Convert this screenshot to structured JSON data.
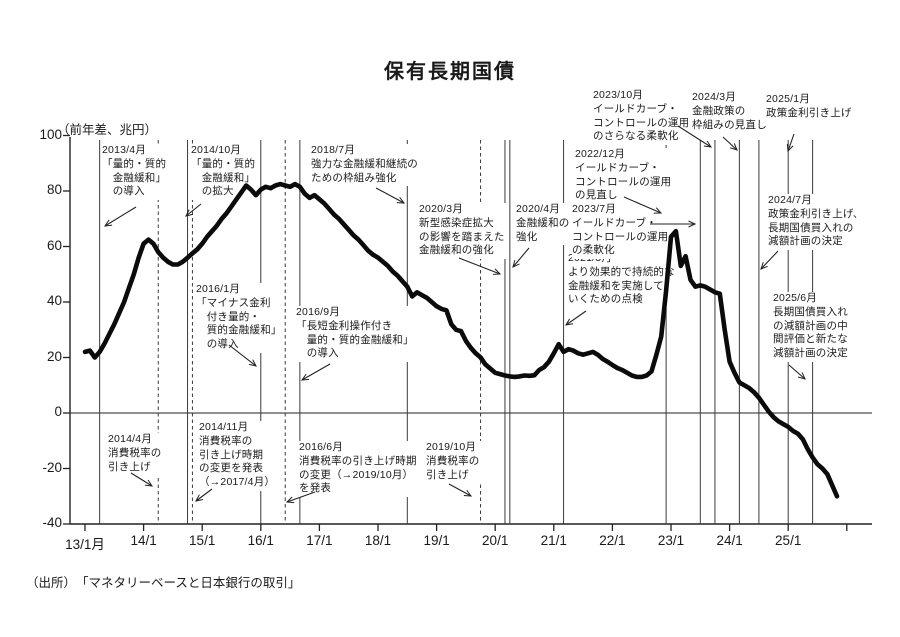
{
  "title": "保有長期国債",
  "y_axis_unit_label": "（前年差、兆円）",
  "source": "（出所）　「マネタリーベースと日本銀行の取引」",
  "chart_data": {
    "type": "line",
    "series_name": "保有長期国債（前年差、兆円）",
    "start_year": 2013,
    "start_month": 1,
    "frequency": "monthly",
    "ylim": [
      -40,
      100
    ],
    "y_ticks": [
      100,
      80,
      60,
      40,
      20,
      0,
      -20,
      -40
    ],
    "x_tick_labels": [
      "13/1月",
      "14/1",
      "15/1",
      "16/1",
      "17/1",
      "18/1",
      "19/1",
      "20/1",
      "21/1",
      "22/1",
      "23/1",
      "24/1",
      "25/1"
    ],
    "grid": false,
    "zero_line": true,
    "line_color": "#0b0b0b",
    "values": [
      22,
      22.5,
      20,
      22,
      25,
      28.5,
      32,
      36,
      40,
      45,
      50,
      56,
      61,
      62.5,
      61,
      58,
      56,
      54.5,
      53.5,
      53.5,
      54.5,
      56,
      57.5,
      59,
      61,
      63.5,
      65.5,
      67.5,
      70,
      72,
      74.5,
      77,
      79.5,
      82,
      80.5,
      78.5,
      80.5,
      81.5,
      81,
      82,
      82.5,
      82,
      81.5,
      82.5,
      81.5,
      79,
      77.5,
      78.5,
      77,
      75.5,
      73.5,
      71.5,
      70,
      68,
      66,
      64,
      62.5,
      60.5,
      58.5,
      57,
      56,
      54.5,
      53,
      51,
      49.5,
      47.5,
      45.5,
      42,
      43.5,
      42.5,
      41.5,
      40,
      38.5,
      37.5,
      37,
      32,
      30,
      29.5,
      26,
      23.5,
      21.5,
      20,
      17.5,
      16,
      14.5,
      14,
      13.5,
      13.2,
      13,
      13.2,
      13.5,
      13.4,
      13.6,
      15.5,
      16.5,
      18.5,
      21.5,
      24.8,
      22,
      23,
      22.5,
      21.5,
      21,
      21.5,
      22,
      21,
      19.5,
      18.5,
      17.3,
      16.2,
      15.5,
      14.5,
      13.5,
      13,
      13,
      13.5,
      15,
      21,
      27.5,
      44,
      63.5,
      65.5,
      53,
      56.5,
      48,
      45.5,
      46,
      45.5,
      44.5,
      43.5,
      43,
      30,
      18.5,
      14.5,
      11,
      10,
      9,
      7.5,
      5.5,
      3,
      0.5,
      -1.5,
      -3,
      -4,
      -5,
      -6.5,
      -7.5,
      -9.5,
      -13,
      -16,
      -18.5,
      -20,
      -22,
      -26,
      -30
    ],
    "annotations": [
      {
        "id": "2013-04",
        "year": 2013,
        "month": 4,
        "line_style": "solid",
        "lines": [
          "2013/4月",
          "「量的・質的",
          "　金融緩和」",
          "　の導入"
        ],
        "text": [
          102,
          144
        ],
        "arrow": [
          136,
          207,
          105,
          226
        ]
      },
      {
        "id": "2014-04",
        "year": 2014,
        "month": 4,
        "line_style": "dashed",
        "lines": [
          "2014/4月",
          "消費税率の",
          "引き上げ"
        ],
        "text": [
          108,
          433
        ],
        "arrow": [
          131,
          473,
          152,
          486
        ]
      },
      {
        "id": "2014-10",
        "year": 2014,
        "month": 10,
        "line_style": "solid",
        "lines": [
          "2014/10月",
          "「量的・質的",
          "　金融緩和」",
          "　の拡大"
        ],
        "text": [
          191,
          144
        ],
        "arrow": [
          201,
          204,
          186,
          216
        ]
      },
      {
        "id": "2014-11",
        "year": 2014,
        "month": 11,
        "line_style": "dashed",
        "lines": [
          "2014/11月",
          "消費税率の",
          "引き上げ時期",
          "の変更を発表",
          "（→2017/4月）"
        ],
        "text": [
          199,
          421
        ],
        "arrow": [
          212,
          489,
          196,
          501
        ]
      },
      {
        "id": "2016-01",
        "year": 2016,
        "month": 1,
        "line_style": "solid",
        "lines": [
          "2016/1月",
          "「マイナス金利",
          "　付き量的・",
          "　質的金融緩和」",
          "　の導入"
        ],
        "text": [
          196,
          283
        ],
        "arrow": [
          229,
          345,
          256,
          366
        ]
      },
      {
        "id": "2016-06",
        "year": 2016,
        "month": 6,
        "line_style": "dashed",
        "lines": [
          "2016/6月",
          "消費税率の引き上げ時期",
          "の変更（→2019/10月）",
          "を発表"
        ],
        "text": [
          299,
          441
        ],
        "arrow": [
          315,
          492,
          287,
          502
        ]
      },
      {
        "id": "2016-09",
        "year": 2016,
        "month": 9,
        "line_style": "solid",
        "lines": [
          "2016/9月",
          "「長短金利操作付き",
          "　量的・質的金融緩和」",
          "　の導入"
        ],
        "text": [
          296,
          306
        ],
        "arrow": [
          330,
          364,
          302,
          380
        ]
      },
      {
        "id": "2018-07",
        "year": 2018,
        "month": 7,
        "line_style": "solid",
        "lines": [
          "2018/7月",
          "強力な金融緩和継続の",
          "ための枠組み強化"
        ],
        "text": [
          311,
          144
        ],
        "arrow": [
          376,
          188,
          404,
          203
        ]
      },
      {
        "id": "2019-10",
        "year": 2019,
        "month": 10,
        "line_style": "dashed",
        "lines": [
          "2019/10月",
          "消費税率の",
          "引き上げ"
        ],
        "text": [
          426,
          441
        ],
        "arrow": [
          449,
          484,
          471,
          496
        ]
      },
      {
        "id": "2020-03",
        "year": 2020,
        "month": 3,
        "line_style": "solid",
        "lines": [
          "2020/3月",
          "新型感染症拡大",
          "の影響を踏まえた",
          "金融緩和の強化"
        ],
        "text": [
          419,
          203
        ],
        "arrow": [
          459,
          258,
          500,
          274
        ]
      },
      {
        "id": "2020-04",
        "year": 2020,
        "month": 4,
        "line_style": "solid",
        "lines": [
          "2020/4月",
          "金融緩和の",
          "強化"
        ],
        "text": [
          516,
          203
        ],
        "arrow": [
          529,
          248,
          513,
          267
        ]
      },
      {
        "id": "2021-03",
        "year": 2021,
        "month": 3,
        "line_style": "solid",
        "lines": [
          "2021/3月",
          "より効果的で持続的な",
          "金融緩和を実施して",
          "いくための点検"
        ],
        "text": [
          568,
          252
        ],
        "arrow": [
          586,
          311,
          566,
          325
        ]
      },
      {
        "id": "2022-12",
        "year": 2022,
        "month": 12,
        "line_style": "solid",
        "lines": [
          "2022/12月",
          "イールドカーブ・",
          "コントロールの運用",
          "の見直し"
        ],
        "text": [
          575,
          148
        ],
        "arrow": [
          624,
          197,
          661,
          213
        ]
      },
      {
        "id": "2023-07",
        "year": 2023,
        "month": 7,
        "line_style": "solid",
        "lines": [
          "2023/7月",
          "イールドカーブ・",
          "コントロールの運用",
          "の柔軟化"
        ],
        "text": [
          572,
          203
        ],
        "arrow": [
          650,
          224,
          695,
          224
        ]
      },
      {
        "id": "2023-10",
        "year": 2023,
        "month": 10,
        "line_style": "solid",
        "lines": [
          "2023/10月",
          "イールドカーブ・",
          "コントロールの運用",
          "のさらなる柔軟化"
        ],
        "text": [
          593,
          89
        ],
        "arrow": [
          678,
          126,
          711,
          147
        ]
      },
      {
        "id": "2024-03",
        "year": 2024,
        "month": 3,
        "line_style": "solid",
        "lines": [
          "2024/3月",
          "金融政策の",
          "枠組みの見直し"
        ],
        "text": [
          692,
          91
        ],
        "arrow": [
          723,
          137,
          737,
          150
        ]
      },
      {
        "id": "2024-07",
        "year": 2024,
        "month": 7,
        "line_style": "solid",
        "lines": [
          "2024/7月",
          "政策金利引き上げ、",
          "長期国債買入れの",
          "減額計画の決定"
        ],
        "text": [
          768,
          194
        ],
        "arrow": [
          778,
          251,
          761,
          269
        ]
      },
      {
        "id": "2025-01",
        "year": 2025,
        "month": 1,
        "line_style": "solid",
        "lines": [
          "2025/1月",
          "政策金利引き上げ"
        ],
        "text": [
          766,
          93
        ],
        "arrow": [
          794,
          134,
          788,
          151
        ]
      },
      {
        "id": "2025-06",
        "year": 2025,
        "month": 6,
        "line_style": "solid",
        "lines": [
          "2025/6月",
          "長期国債買入れ",
          "の減額計画の中",
          "間評価と新たな",
          "減額計画の決定"
        ],
        "text": [
          773,
          292
        ],
        "arrow": [
          789,
          365,
          805,
          379
        ]
      }
    ]
  }
}
